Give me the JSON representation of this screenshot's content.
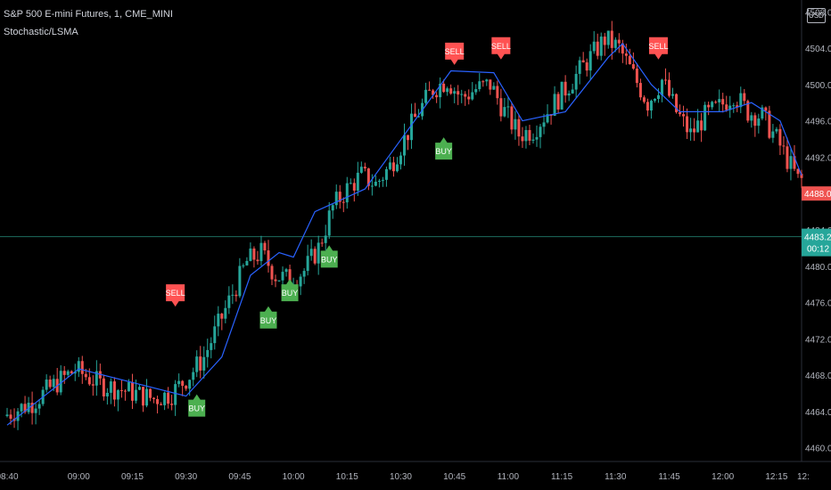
{
  "header": {
    "symbol_title": "S&P 500 E-mini Futures, 1, CME_MINI",
    "indicator": "Stochastic/LSMA",
    "currency": "USD"
  },
  "colors": {
    "background": "#000000",
    "up_candle": "#26a69a",
    "down_candle": "#ef5350",
    "lsma_line": "#2962ff",
    "buy_label": "#4caf50",
    "sell_label": "#ff5252",
    "crosshair": "#1e6b5e",
    "axis_text": "#b2b5be"
  },
  "chart_data": {
    "type": "candlestick",
    "x_ticks": [
      "08:40",
      "09:00",
      "09:15",
      "09:30",
      "09:45",
      "10:00",
      "10:15",
      "10:30",
      "10:45",
      "11:00",
      "11:15",
      "11:30",
      "11:45",
      "12:00",
      "12:15",
      "12:"
    ],
    "y_ticks": [
      "4460.00",
      "4464.00",
      "4468.00",
      "4472.00",
      "4476.00",
      "4480.00",
      "4484.00",
      "4488.00",
      "4492.00",
      "4496.00",
      "4500.00",
      "4504.00",
      "4508.00"
    ],
    "ylim": [
      4458.5,
      4509.3
    ],
    "xlim": [
      "08:40",
      "12:22"
    ],
    "price_path": [
      [
        "08:40",
        4463.5
      ],
      [
        "08:48",
        4465.0
      ],
      [
        "08:55",
        4467.2
      ],
      [
        "09:00",
        4468.6
      ],
      [
        "09:07",
        4467.0
      ],
      [
        "09:15",
        4466.2
      ],
      [
        "09:22",
        4465.4
      ],
      [
        "09:27",
        4466.0
      ],
      [
        "09:32",
        4468.0
      ],
      [
        "09:36",
        4470.0
      ],
      [
        "09:40",
        4473.5
      ],
      [
        "09:44",
        4477.0
      ],
      [
        "09:48",
        4480.5
      ],
      [
        "09:52",
        4481.5
      ],
      [
        "09:56",
        4479.0
      ],
      [
        "10:00",
        4478.5
      ],
      [
        "10:04",
        4479.5
      ],
      [
        "10:08",
        4482.0
      ],
      [
        "10:12",
        4486.5
      ],
      [
        "10:16",
        4488.5
      ],
      [
        "10:20",
        4490.0
      ],
      [
        "10:24",
        4489.0
      ],
      [
        "10:28",
        4491.0
      ],
      [
        "10:32",
        4494.0
      ],
      [
        "10:36",
        4497.0
      ],
      [
        "10:40",
        4499.5
      ],
      [
        "10:44",
        4500.5
      ],
      [
        "10:48",
        4498.5
      ],
      [
        "10:52",
        4499.5
      ],
      [
        "10:56",
        4500.0
      ],
      [
        "11:00",
        4497.0
      ],
      [
        "11:04",
        4494.5
      ],
      [
        "11:08",
        4495.0
      ],
      [
        "11:12",
        4497.0
      ],
      [
        "11:16",
        4499.0
      ],
      [
        "11:20",
        4501.0
      ],
      [
        "11:24",
        4503.0
      ],
      [
        "11:28",
        4505.0
      ],
      [
        "11:32",
        4504.0
      ],
      [
        "11:36",
        4501.0
      ],
      [
        "11:40",
        4498.0
      ],
      [
        "11:44",
        4500.5
      ],
      [
        "11:48",
        4497.0
      ],
      [
        "11:52",
        4494.5
      ],
      [
        "11:56",
        4496.5
      ],
      [
        "12:00",
        4497.5
      ],
      [
        "12:04",
        4499.0
      ],
      [
        "12:08",
        4497.0
      ],
      [
        "12:12",
        4496.5
      ],
      [
        "12:16",
        4494.0
      ],
      [
        "12:20",
        4491.0
      ],
      [
        "12:22",
        4489.5
      ]
    ],
    "lsma": [
      [
        "08:40",
        4462.5
      ],
      [
        "09:00",
        4468.7
      ],
      [
        "09:30",
        4465.7
      ],
      [
        "09:40",
        4470.0
      ],
      [
        "09:48",
        4479.0
      ],
      [
        "09:56",
        4481.5
      ],
      [
        "10:00",
        4481.0
      ],
      [
        "10:06",
        4486.0
      ],
      [
        "10:20",
        4488.5
      ],
      [
        "10:32",
        4495.0
      ],
      [
        "10:44",
        4501.5
      ],
      [
        "10:56",
        4501.3
      ],
      [
        "11:04",
        4496.0
      ],
      [
        "11:16",
        4497.0
      ],
      [
        "11:28",
        4503.0
      ],
      [
        "11:32",
        4504.5
      ],
      [
        "11:40",
        4500.0
      ],
      [
        "11:48",
        4497.0
      ],
      [
        "12:00",
        4497.0
      ],
      [
        "12:08",
        4498.0
      ],
      [
        "12:16",
        4496.0
      ],
      [
        "12:22",
        4490.0
      ]
    ],
    "current_price": "4483.25",
    "current_value": 4483.25,
    "countdown": "00:12",
    "last_close_label": "4488.00",
    "last_close_value": 4488.0,
    "signals": [
      {
        "text": "SELL",
        "time": "09:27",
        "price": 4478.0,
        "dir": "down"
      },
      {
        "text": "BUY",
        "time": "09:33",
        "price": 4465.3,
        "dir": "up"
      },
      {
        "text": "BUY",
        "time": "09:53",
        "price": 4475.0,
        "dir": "up"
      },
      {
        "text": "BUY",
        "time": "09:59",
        "price": 4478.0,
        "dir": "up"
      },
      {
        "text": "BUY",
        "time": "10:10",
        "price": 4481.7,
        "dir": "up"
      },
      {
        "text": "BUY",
        "time": "10:42",
        "price": 4493.6,
        "dir": "up"
      },
      {
        "text": "SELL",
        "time": "10:45",
        "price": 4504.6,
        "dir": "down"
      },
      {
        "text": "SELL",
        "time": "10:58",
        "price": 4505.2,
        "dir": "down"
      },
      {
        "text": "SELL",
        "time": "11:42",
        "price": 4505.2,
        "dir": "down"
      }
    ]
  }
}
